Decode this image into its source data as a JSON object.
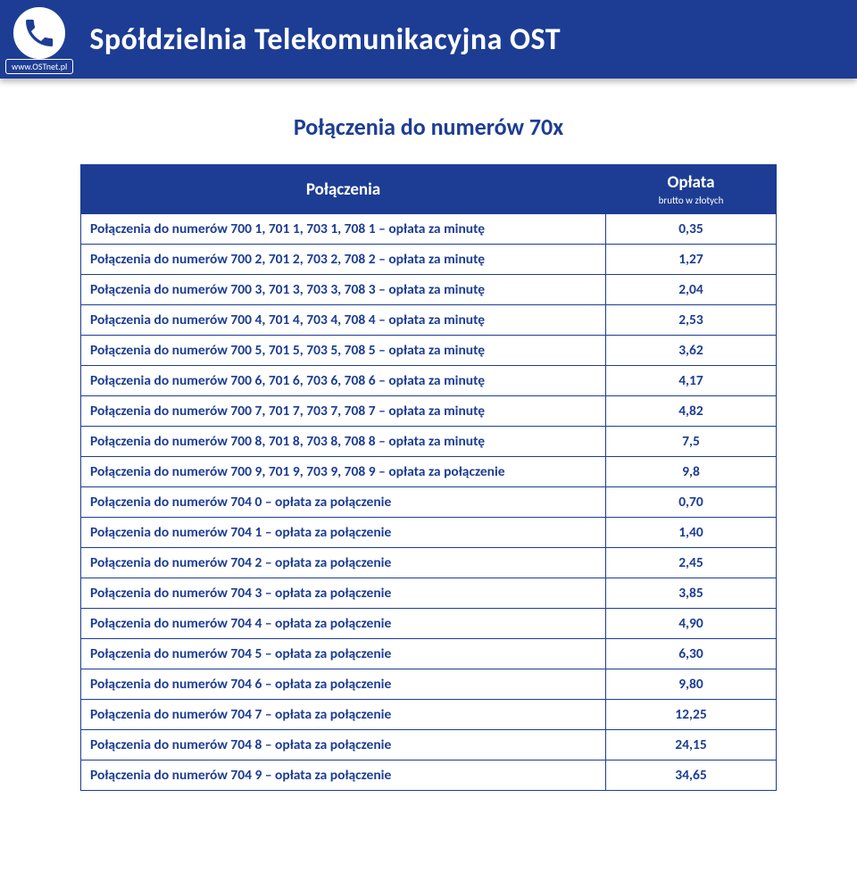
{
  "header": {
    "link_label": "www.OSTnet.pl",
    "company": "Spółdzielnia Telekomunikacyjna OST"
  },
  "title": "Połączenia do numerów 70x",
  "table": {
    "header_connections": "Połączenia",
    "header_fee": "Opłata",
    "header_fee_sub": "brutto  w złotych",
    "text_color": "#1d3d94",
    "border_color": "#1d3d94",
    "header_bg": "#1d3d94",
    "header_fg": "#ffffff",
    "rows": [
      {
        "desc": "Połączenia do numerów 700 1, 701 1, 703 1, 708 1 – opłata za minutę",
        "val": "0,35"
      },
      {
        "desc": "Połączenia do numerów 700 2, 701 2, 703 2, 708 2 – opłata za minutę",
        "val": "1,27"
      },
      {
        "desc": "Połączenia do numerów 700 3, 701 3, 703 3, 708 3 – opłata za minutę",
        "val": "2,04"
      },
      {
        "desc": "Połączenia do numerów 700 4, 701 4, 703 4, 708 4 – opłata za minutę",
        "val": "2,53"
      },
      {
        "desc": "Połączenia do numerów 700 5, 701 5, 703 5, 708 5 – opłata za minutę",
        "val": "3,62"
      },
      {
        "desc": "Połączenia do numerów 700 6, 701 6, 703 6, 708 6 – opłata za minutę",
        "val": "4,17"
      },
      {
        "desc": "Połączenia do numerów 700 7, 701 7, 703 7, 708 7 – opłata za minutę",
        "val": "4,82"
      },
      {
        "desc": "Połączenia do numerów 700 8, 701 8, 703 8, 708 8 – opłata za minutę",
        "val": "7,5"
      },
      {
        "desc": "Połączenia do numerów 700 9, 701 9, 703 9, 708 9 – opłata za połączenie",
        "val": "9,8"
      },
      {
        "desc": "Połączenia do numerów 704 0 – opłata za połączenie",
        "val": "0,70"
      },
      {
        "desc": "Połączenia do numerów 704 1 – opłata za połączenie",
        "val": "1,40"
      },
      {
        "desc": "Połączenia do numerów 704 2 – opłata za połączenie",
        "val": "2,45"
      },
      {
        "desc": "Połączenia do numerów 704 3 – opłata za połączenie",
        "val": "3,85"
      },
      {
        "desc": "Połączenia do numerów 704 4 – opłata za połączenie",
        "val": "4,90"
      },
      {
        "desc": "Połączenia do numerów 704 5 – opłata za połączenie",
        "val": "6,30"
      },
      {
        "desc": "Połączenia do numerów 704 6 – opłata za połączenie",
        "val": "9,80"
      },
      {
        "desc": "Połączenia do numerów 704 7 – opłata za połączenie",
        "val": "12,25"
      },
      {
        "desc": "Połączenia do numerów 704 8 – opłata za połączenie",
        "val": "24,15"
      },
      {
        "desc": "Połączenia do numerów 704 9 – opłata za połączenie",
        "val": "34,65"
      }
    ]
  }
}
